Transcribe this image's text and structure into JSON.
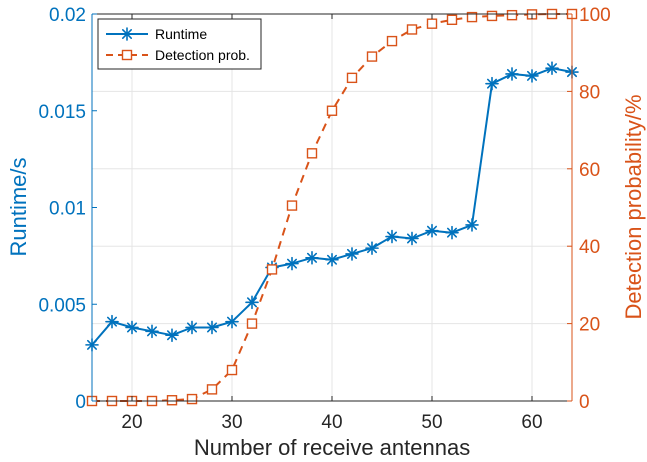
{
  "chart_data": {
    "type": "line",
    "xlabel": "Number of receive antennas",
    "ylabel_left": "Runtime/s",
    "ylabel_right": "Detection probability/%",
    "xlim": [
      16,
      64
    ],
    "ylim_left": [
      0,
      0.02
    ],
    "ylim_right": [
      0,
      100
    ],
    "x_ticks": [
      "20",
      "30",
      "40",
      "50",
      "60"
    ],
    "x_tick_values": [
      20,
      30,
      40,
      50,
      60
    ],
    "y_left_ticks": [
      "0",
      "0.005",
      "0.01",
      "0.015",
      "0.02"
    ],
    "y_left_tick_values": [
      0,
      0.005,
      0.01,
      0.015,
      0.02
    ],
    "y_right_ticks": [
      "0",
      "20",
      "40",
      "60",
      "80",
      "100"
    ],
    "y_right_tick_values": [
      0,
      20,
      40,
      60,
      80,
      100
    ],
    "grid": true,
    "legend_position": "top-left",
    "x": [
      16,
      18,
      20,
      22,
      24,
      26,
      28,
      30,
      32,
      34,
      36,
      38,
      40,
      42,
      44,
      46,
      48,
      50,
      52,
      54,
      56,
      58,
      60,
      62,
      64
    ],
    "series": [
      {
        "name": "Runtime",
        "axis": "left",
        "color": "#0072BD",
        "marker": "asterisk",
        "line": "solid",
        "values": [
          0.0029,
          0.0041,
          0.0038,
          0.0036,
          0.0034,
          0.0038,
          0.0038,
          0.0041,
          0.0051,
          0.0069,
          0.0071,
          0.0074,
          0.0073,
          0.0076,
          0.0079,
          0.0085,
          0.0084,
          0.0088,
          0.0087,
          0.0091,
          0.0164,
          0.0169,
          0.0168,
          0.0172,
          0.017
        ]
      },
      {
        "name": "Detection prob.",
        "axis": "right",
        "color": "#D95319",
        "marker": "square",
        "line": "dashed",
        "values": [
          0,
          0,
          0,
          0,
          0.2,
          0.5,
          3,
          8,
          20,
          34,
          50.5,
          64,
          75,
          83.5,
          89,
          93,
          96,
          97.5,
          98.5,
          99.2,
          99.5,
          99.7,
          99.9,
          100,
          100
        ]
      }
    ]
  }
}
